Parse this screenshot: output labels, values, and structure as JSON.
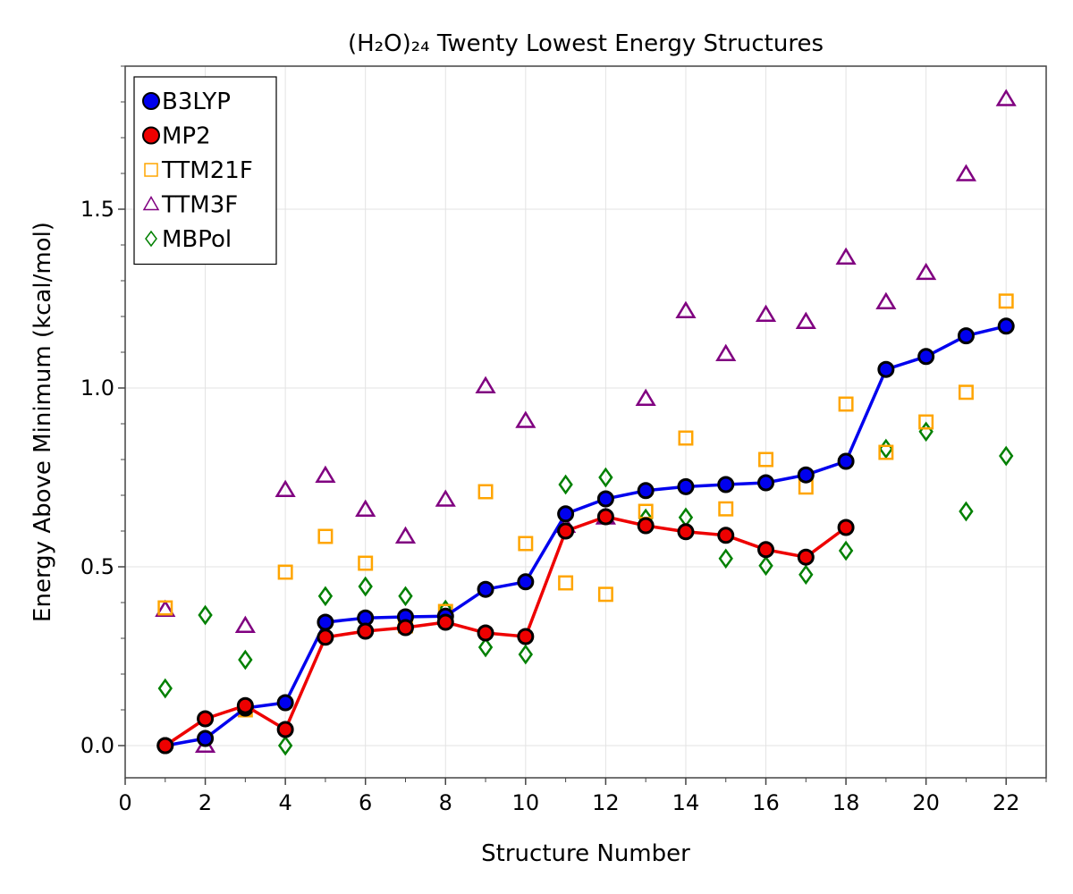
{
  "chart_data": {
    "type": "line",
    "title": "(H₂O)₂₄ Twenty Lowest Energy Structures",
    "xlabel": "Structure Number",
    "ylabel": "Energy Above Minimum (kcal/mol)",
    "xlim": [
      0,
      23
    ],
    "ylim": [
      -0.09,
      1.9
    ],
    "xticks": [
      0,
      2,
      4,
      6,
      8,
      10,
      12,
      14,
      16,
      18,
      20,
      22
    ],
    "yticks": [
      0.0,
      0.5,
      1.0,
      1.5
    ],
    "ytick_labels": [
      "0.0",
      "0.5",
      "1.0",
      "1.5"
    ],
    "grid": true,
    "legend_position": "top-left",
    "series": [
      {
        "name": "B3LYP",
        "style": "line-marker",
        "marker": "circle",
        "color": "#0000ee",
        "x": [
          1,
          2,
          3,
          4,
          5,
          6,
          7,
          8,
          9,
          10,
          11,
          12,
          13,
          14,
          15,
          16,
          17,
          18,
          19,
          20,
          21,
          22
        ],
        "y": [
          0.0,
          0.02,
          0.105,
          0.12,
          0.345,
          0.357,
          0.36,
          0.362,
          0.437,
          0.458,
          0.648,
          0.69,
          0.713,
          0.724,
          0.73,
          0.735,
          0.757,
          0.795,
          1.052,
          1.088,
          1.146,
          1.173
        ]
      },
      {
        "name": "MP2",
        "style": "line-marker",
        "marker": "circle",
        "color": "#ee0000",
        "x": [
          1,
          2,
          3,
          4,
          5,
          6,
          7,
          8,
          9,
          10,
          11,
          12,
          13,
          14,
          15,
          16,
          17,
          18
        ],
        "y": [
          0.0,
          0.075,
          0.112,
          0.045,
          0.303,
          0.32,
          0.33,
          0.345,
          0.315,
          0.305,
          0.6,
          0.64,
          0.615,
          0.598,
          0.588,
          0.548,
          0.527,
          0.61
        ]
      },
      {
        "name": "TTM21F",
        "style": "marker",
        "marker": "square",
        "color": "#ffa500",
        "x": [
          1,
          3,
          4,
          5,
          6,
          7,
          8,
          9,
          10,
          11,
          12,
          13,
          14,
          15,
          16,
          17,
          18,
          19,
          20,
          21,
          22
        ],
        "y": [
          0.385,
          0.1,
          0.485,
          0.585,
          0.51,
          0.335,
          0.375,
          0.71,
          0.565,
          0.455,
          0.423,
          0.655,
          0.86,
          0.662,
          0.8,
          0.723,
          0.955,
          0.82,
          0.905,
          0.988,
          1.243
        ]
      },
      {
        "name": "TTM3F",
        "style": "marker",
        "marker": "triangle",
        "color": "#800080",
        "x": [
          1,
          2,
          3,
          4,
          5,
          6,
          7,
          8,
          9,
          10,
          11,
          12,
          13,
          14,
          15,
          16,
          17,
          18,
          19,
          20,
          21,
          22
        ],
        "y": [
          0.38,
          0.0,
          0.335,
          0.715,
          0.755,
          0.66,
          0.585,
          0.688,
          1.005,
          0.908,
          0.615,
          0.638,
          0.97,
          1.215,
          1.095,
          1.205,
          1.185,
          1.365,
          1.24,
          1.322,
          1.598,
          1.808
        ]
      },
      {
        "name": "MBPol",
        "style": "marker",
        "marker": "diamond",
        "color": "#008000",
        "x": [
          1,
          2,
          3,
          4,
          5,
          6,
          7,
          8,
          9,
          10,
          11,
          12,
          13,
          14,
          15,
          16,
          17,
          18,
          19,
          20,
          21,
          22
        ],
        "y": [
          0.16,
          0.365,
          0.24,
          0.0,
          0.418,
          0.445,
          0.418,
          0.38,
          0.275,
          0.255,
          0.73,
          0.75,
          0.635,
          0.638,
          0.523,
          0.503,
          0.478,
          0.545,
          0.83,
          0.878,
          0.655,
          0.81
        ]
      }
    ]
  }
}
